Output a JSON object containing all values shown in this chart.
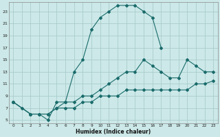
{
  "xlabel": "Humidex (Indice chaleur)",
  "bg_color": "#cce8e8",
  "grid_color": "#aacccc",
  "line_color": "#1a6b6b",
  "xlim": [
    -0.5,
    23.5
  ],
  "ylim": [
    4.5,
    24.5
  ],
  "xticks": [
    0,
    1,
    2,
    3,
    4,
    5,
    6,
    7,
    8,
    9,
    10,
    11,
    12,
    13,
    14,
    15,
    16,
    17,
    18,
    19,
    20,
    21,
    22,
    23
  ],
  "yticks": [
    5,
    7,
    9,
    11,
    13,
    15,
    17,
    19,
    21,
    23
  ],
  "s1x": [
    0,
    1,
    2,
    3,
    4,
    5,
    6,
    7,
    8,
    9,
    10,
    11,
    12,
    13,
    14,
    15,
    16,
    17
  ],
  "s1y": [
    8,
    7,
    6,
    6,
    5,
    8,
    8,
    13,
    15,
    20,
    22,
    23,
    24,
    24,
    24,
    23,
    22,
    17
  ],
  "s2x": [
    0,
    2,
    3,
    4,
    5,
    6,
    7,
    8,
    9,
    10,
    11,
    12,
    13,
    14,
    15,
    16,
    17,
    18,
    19,
    20,
    21,
    22,
    23
  ],
  "s2y": [
    8,
    6,
    6,
    6,
    7,
    8,
    8,
    9,
    9,
    10,
    11,
    12,
    13,
    13,
    15,
    14,
    13,
    12,
    12,
    15,
    14,
    13,
    13
  ],
  "s3x": [
    0,
    2,
    3,
    4,
    5,
    6,
    7,
    8,
    9,
    10,
    11,
    12,
    13,
    14,
    15,
    16,
    17,
    18,
    19,
    20,
    21,
    22,
    23
  ],
  "s3y": [
    8,
    6,
    6,
    6,
    7,
    7,
    7,
    8,
    8,
    9,
    9,
    9,
    10,
    10,
    10,
    10,
    10,
    10,
    10,
    10,
    11,
    11,
    11.5
  ]
}
